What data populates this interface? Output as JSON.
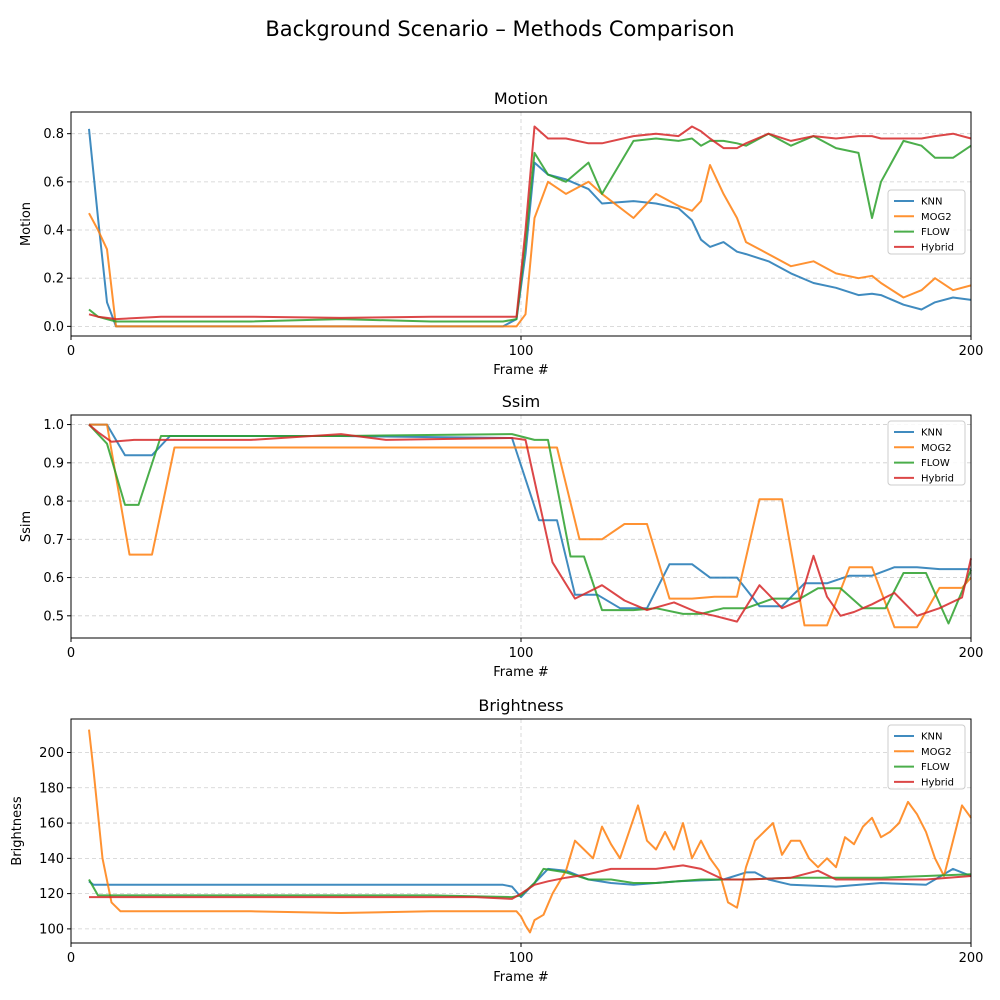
{
  "title": "Background Scenario – Methods Comparison",
  "colors": {
    "KNN": "#1f77b4",
    "MOG2": "#ff7f0e",
    "FLOW": "#2ca02c",
    "Hybrid": "#d62728"
  },
  "chart_data": [
    {
      "type": "line",
      "title": "Motion",
      "xlabel": "Frame #",
      "ylabel": "Motion",
      "xlim": [
        0,
        200
      ],
      "ylim": [
        -0.04,
        0.89
      ],
      "xticks": [
        0,
        100,
        200
      ],
      "yticks": [
        0.0,
        0.2,
        0.4,
        0.6,
        0.8
      ],
      "ytick_labels": [
        "0.0",
        "0.2",
        "0.4",
        "0.6",
        "0.8"
      ],
      "grid": true,
      "vline_x": 100,
      "legend": "center-right",
      "x": [
        4,
        6,
        8,
        10,
        20,
        40,
        60,
        80,
        96,
        99,
        101,
        103,
        106,
        110,
        115,
        118,
        125,
        130,
        135,
        138,
        140,
        142,
        145,
        148,
        150,
        155,
        160,
        165,
        170,
        175,
        178,
        180,
        185,
        189,
        192,
        196,
        200
      ],
      "series": [
        {
          "name": "KNN",
          "values": [
            0.82,
            0.45,
            0.1,
            0.0,
            0.0,
            0.0,
            0.0,
            0.0,
            0.0,
            0.03,
            0.3,
            0.68,
            0.63,
            0.61,
            0.57,
            0.51,
            0.52,
            0.51,
            0.49,
            0.44,
            0.36,
            0.33,
            0.35,
            0.31,
            0.3,
            0.27,
            0.22,
            0.18,
            0.16,
            0.13,
            0.135,
            0.13,
            0.09,
            0.07,
            0.1,
            0.12,
            0.11
          ]
        },
        {
          "name": "MOG2",
          "values": [
            0.47,
            0.4,
            0.32,
            0.0,
            0.0,
            0.0,
            0.0,
            0.0,
            0.0,
            0.0,
            0.05,
            0.45,
            0.6,
            0.55,
            0.6,
            0.55,
            0.45,
            0.55,
            0.5,
            0.48,
            0.52,
            0.67,
            0.55,
            0.45,
            0.35,
            0.3,
            0.25,
            0.27,
            0.22,
            0.2,
            0.21,
            0.18,
            0.12,
            0.15,
            0.2,
            0.15,
            0.17
          ]
        },
        {
          "name": "FLOW",
          "values": [
            0.07,
            0.04,
            0.03,
            0.02,
            0.02,
            0.02,
            0.03,
            0.02,
            0.02,
            0.03,
            0.35,
            0.72,
            0.63,
            0.6,
            0.68,
            0.55,
            0.77,
            0.78,
            0.77,
            0.78,
            0.75,
            0.77,
            0.77,
            0.76,
            0.75,
            0.8,
            0.75,
            0.79,
            0.74,
            0.72,
            0.45,
            0.6,
            0.77,
            0.75,
            0.7,
            0.7,
            0.75
          ]
        },
        {
          "name": "Hybrid",
          "values": [
            0.05,
            0.04,
            0.035,
            0.03,
            0.04,
            0.04,
            0.035,
            0.04,
            0.04,
            0.04,
            0.4,
            0.83,
            0.78,
            0.78,
            0.76,
            0.76,
            0.79,
            0.8,
            0.79,
            0.83,
            0.81,
            0.78,
            0.74,
            0.74,
            0.76,
            0.8,
            0.77,
            0.79,
            0.78,
            0.79,
            0.79,
            0.78,
            0.78,
            0.78,
            0.79,
            0.8,
            0.78
          ]
        }
      ]
    },
    {
      "type": "line",
      "title": "Ssim",
      "xlabel": "Frame #",
      "ylabel": "Ssim",
      "xlim": [
        0,
        200
      ],
      "ylim": [
        0.442,
        1.025
      ],
      "xticks": [
        0,
        100,
        200
      ],
      "yticks": [
        0.5,
        0.6,
        0.7,
        0.8,
        0.9,
        1.0
      ],
      "ytick_labels": [
        "0.5",
        "0.6",
        "0.7",
        "0.8",
        "0.9",
        "1.0"
      ],
      "grid": true,
      "vline_x": 100,
      "legend": "upper right",
      "series": [
        {
          "name": "KNN",
          "x": [
            4,
            8,
            12,
            18,
            22,
            60,
            98,
            104,
            108,
            112,
            117,
            122,
            128,
            133,
            138,
            142,
            148,
            153,
            158,
            163,
            168,
            173,
            178,
            183,
            188,
            193,
            200
          ],
          "values": [
            1.0,
            1.0,
            0.92,
            0.92,
            0.97,
            0.97,
            0.965,
            0.75,
            0.75,
            0.555,
            0.555,
            0.52,
            0.52,
            0.635,
            0.635,
            0.6,
            0.6,
            0.525,
            0.525,
            0.585,
            0.585,
            0.605,
            0.605,
            0.627,
            0.627,
            0.622,
            0.622
          ]
        },
        {
          "name": "MOG2",
          "x": [
            4,
            8,
            13,
            18,
            23,
            60,
            98,
            108,
            113,
            118,
            123,
            128,
            133,
            138,
            143,
            148,
            153,
            158,
            163,
            168,
            173,
            178,
            183,
            188,
            193,
            198,
            200
          ],
          "values": [
            1.0,
            1.0,
            0.66,
            0.66,
            0.94,
            0.94,
            0.94,
            0.94,
            0.7,
            0.7,
            0.74,
            0.74,
            0.545,
            0.545,
            0.55,
            0.55,
            0.805,
            0.805,
            0.475,
            0.475,
            0.627,
            0.627,
            0.47,
            0.47,
            0.573,
            0.573,
            0.6
          ]
        },
        {
          "name": "FLOW",
          "x": [
            4,
            8,
            12,
            15,
            20,
            60,
            98,
            103,
            106,
            111,
            114,
            118,
            125,
            130,
            136,
            140,
            145,
            150,
            156,
            162,
            166,
            171,
            176,
            181,
            185,
            190,
            195,
            200
          ],
          "values": [
            1.0,
            0.95,
            0.79,
            0.79,
            0.97,
            0.97,
            0.975,
            0.96,
            0.96,
            0.655,
            0.655,
            0.515,
            0.515,
            0.52,
            0.505,
            0.505,
            0.52,
            0.52,
            0.545,
            0.545,
            0.572,
            0.572,
            0.52,
            0.52,
            0.612,
            0.612,
            0.48,
            0.62
          ]
        },
        {
          "name": "Hybrid",
          "x": [
            4,
            6,
            9,
            14,
            20,
            40,
            60,
            70,
            98,
            101,
            104,
            107,
            112,
            118,
            123,
            128,
            134,
            139,
            143,
            148,
            153,
            158,
            162,
            165,
            168,
            171,
            174,
            178,
            183,
            188,
            193,
            198,
            200
          ],
          "values": [
            1.0,
            0.98,
            0.955,
            0.96,
            0.96,
            0.96,
            0.975,
            0.96,
            0.965,
            0.96,
            0.8,
            0.64,
            0.545,
            0.58,
            0.54,
            0.515,
            0.535,
            0.51,
            0.5,
            0.485,
            0.58,
            0.52,
            0.54,
            0.657,
            0.55,
            0.5,
            0.51,
            0.53,
            0.56,
            0.5,
            0.52,
            0.548,
            0.65
          ]
        }
      ]
    },
    {
      "type": "line",
      "title": "Brightness",
      "xlabel": "Frame #",
      "ylabel": "Brightness",
      "xlim": [
        0,
        200
      ],
      "ylim": [
        92,
        219
      ],
      "xticks": [
        0,
        100,
        200
      ],
      "yticks": [
        100,
        120,
        140,
        160,
        180,
        200
      ],
      "ytick_labels": [
        "100",
        "120",
        "140",
        "160",
        "180",
        "200"
      ],
      "grid": true,
      "vline_x": 100,
      "legend": "upper right",
      "series": [
        {
          "name": "KNN",
          "x": [
            4,
            5,
            8,
            40,
            80,
            96,
            98,
            100,
            103,
            106,
            110,
            115,
            120,
            125,
            135,
            145,
            150,
            152,
            155,
            160,
            170,
            180,
            190,
            196,
            200
          ],
          "values": [
            127,
            125,
            125,
            125,
            125,
            125,
            124,
            118,
            126,
            134,
            133,
            128,
            126,
            125,
            127,
            128,
            132,
            132,
            128,
            125,
            124,
            126,
            125,
            134,
            130
          ]
        },
        {
          "name": "MOG2",
          "x": [
            4,
            5,
            7,
            9,
            11,
            20,
            40,
            60,
            80,
            99,
            100,
            101,
            102,
            103,
            105,
            107,
            110,
            112,
            114,
            116,
            118,
            120,
            122,
            124,
            126,
            128,
            130,
            132,
            134,
            136,
            138,
            140,
            142,
            144,
            146,
            148,
            150,
            152,
            154,
            156,
            158,
            160,
            162,
            164,
            166,
            168,
            170,
            172,
            174,
            176,
            178,
            180,
            182,
            184,
            186,
            188,
            190,
            192,
            194,
            196,
            198,
            200
          ],
          "values": [
            213,
            190,
            140,
            115,
            110,
            110,
            110,
            109,
            110,
            110,
            107,
            102,
            98,
            105,
            108,
            120,
            133,
            150,
            145,
            140,
            158,
            148,
            140,
            155,
            170,
            150,
            145,
            155,
            145,
            160,
            140,
            150,
            140,
            133,
            115,
            112,
            135,
            150,
            155,
            160,
            142,
            150,
            150,
            140,
            135,
            140,
            135,
            152,
            148,
            158,
            163,
            152,
            155,
            160,
            172,
            165,
            155,
            140,
            130,
            150,
            170,
            163
          ]
        },
        {
          "name": "FLOW",
          "x": [
            4,
            6,
            10,
            40,
            80,
            98,
            100,
            103,
            105,
            110,
            115,
            120,
            125,
            130,
            140,
            150,
            160,
            170,
            180,
            190,
            200
          ],
          "values": [
            128,
            119,
            119,
            119,
            119,
            118,
            119,
            126,
            134,
            132,
            128,
            128,
            126,
            126,
            128,
            128,
            129,
            129,
            129,
            130,
            131
          ]
        },
        {
          "name": "Hybrid",
          "x": [
            4,
            10,
            20,
            40,
            60,
            80,
            90,
            98,
            100,
            103,
            106,
            110,
            115,
            120,
            130,
            136,
            140,
            145,
            150,
            160,
            166,
            170,
            180,
            190,
            200
          ],
          "values": [
            118,
            118,
            118,
            118,
            118,
            118,
            118,
            117,
            120,
            125,
            127,
            129,
            131,
            134,
            134,
            136,
            134,
            128,
            128,
            129,
            133,
            128,
            128,
            128,
            130
          ]
        }
      ]
    }
  ]
}
